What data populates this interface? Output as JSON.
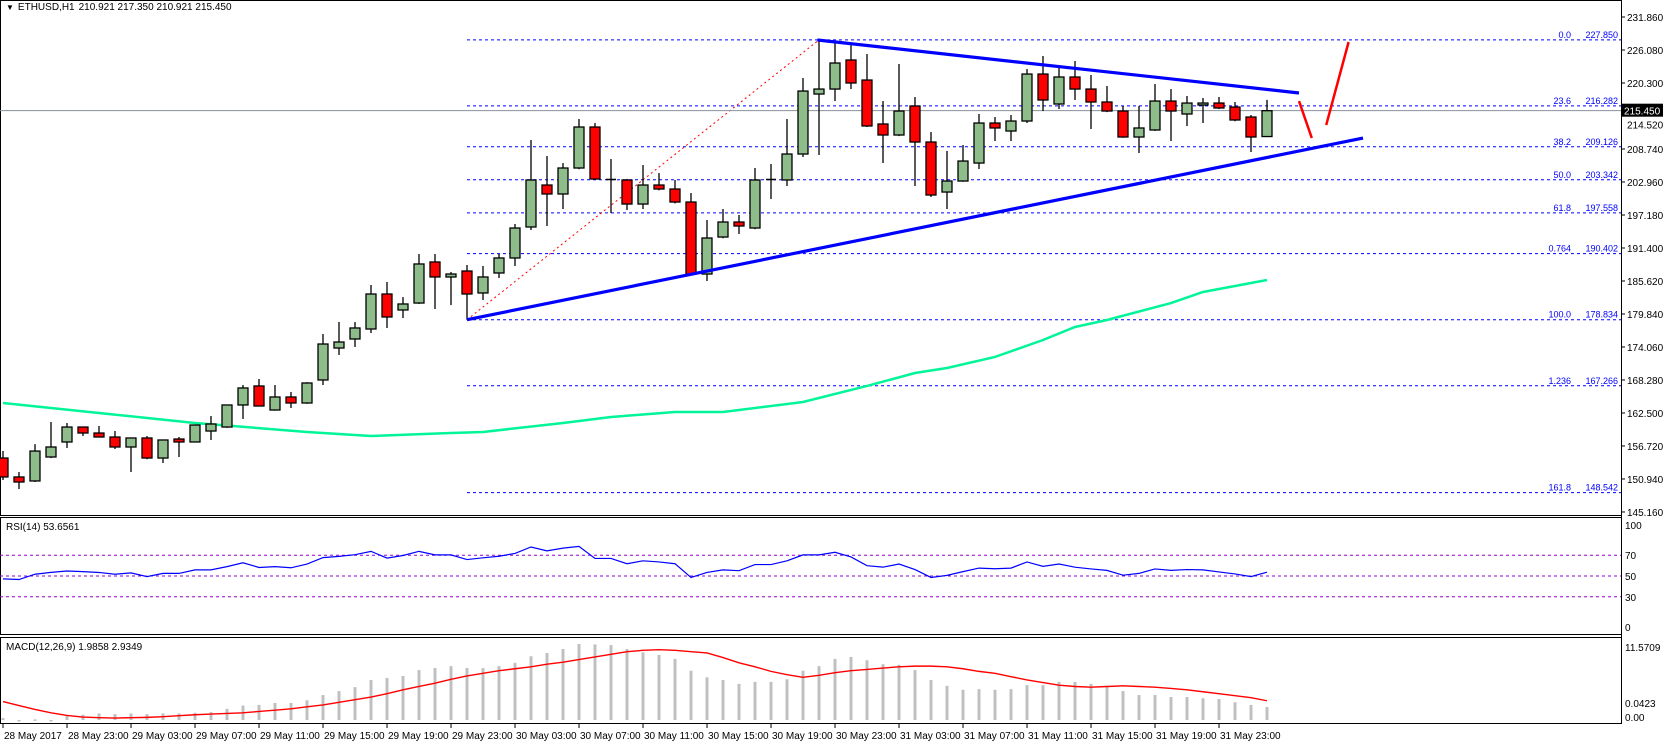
{
  "header": {
    "symbol": "ETHUSD,H1",
    "ohlc": "210.921 217.350 210.921 215.450",
    "menu_icon": "triangle-down-icon"
  },
  "colors": {
    "bull": "#8fbc8b",
    "bear": "#ff0000",
    "ma": "#00f598",
    "trendline": "#0000ff",
    "fib": "#0000ff",
    "fib_diagonal": "#ff0000",
    "rsi_line": "#0000ff",
    "rsi_levels": "#9400d3",
    "macd_hist": "#c0c0c0",
    "macd_signal": "#ff0000",
    "arrows": "#ff0000"
  },
  "chart_data": {
    "type": "candlestick",
    "title": "ETHUSD,H1",
    "price_range": [
      145.16,
      231.86
    ],
    "price_ticks": [
      "231.860",
      "226.080",
      "220.300",
      "214.520",
      "208.740",
      "202.960",
      "197.180",
      "191.400",
      "185.620",
      "179.840",
      "174.060",
      "168.280",
      "162.500",
      "156.720",
      "150.940",
      "145.160"
    ],
    "current_price": "215.450",
    "time_labels": [
      "28 May 2017",
      "28 May 23:00",
      "29 May 03:00",
      "29 May 07:00",
      "29 May 11:00",
      "29 May 15:00",
      "29 May 19:00",
      "29 May 23:00",
      "30 May 03:00",
      "30 May 07:00",
      "30 May 11:00",
      "30 May 15:00",
      "30 May 19:00",
      "30 May 23:00",
      "31 May 03:00",
      "31 May 07:00",
      "31 May 11:00",
      "31 May 15:00",
      "31 May 19:00",
      "31 May 23:00"
    ],
    "time_label_every_n_candles": 4,
    "candles_ohlc": [
      [
        154.61,
        155.84,
        150.76,
        151.29
      ],
      [
        151.29,
        152.16,
        149.18,
        150.41
      ],
      [
        150.59,
        157.05,
        150.41,
        155.83
      ],
      [
        154.79,
        160.92,
        154.6,
        156.54
      ],
      [
        157.42,
        160.74,
        156.37,
        160.04
      ],
      [
        160.04,
        160.1,
        158.46,
        158.99
      ],
      [
        158.99,
        160.22,
        158.29,
        158.29
      ],
      [
        158.29,
        159.34,
        156.19,
        156.54
      ],
      [
        156.54,
        158.12,
        152.16,
        158.12
      ],
      [
        158.12,
        158.46,
        154.4,
        154.61
      ],
      [
        154.61,
        157.77,
        153.74,
        157.77
      ],
      [
        157.94,
        158.29,
        154.79,
        157.42
      ],
      [
        157.42,
        160.39,
        157.4,
        160.39
      ],
      [
        159.34,
        161.97,
        157.77,
        160.57
      ],
      [
        160.04,
        163.9,
        159.9,
        163.9
      ],
      [
        163.9,
        167.4,
        161.45,
        166.88
      ],
      [
        167.23,
        168.45,
        163.7,
        163.72
      ],
      [
        163.02,
        167.4,
        162.9,
        165.3
      ],
      [
        165.3,
        166.18,
        163.37,
        164.25
      ],
      [
        164.25,
        167.9,
        164.1,
        167.75
      ],
      [
        168.28,
        176.33,
        167.4,
        174.58
      ],
      [
        173.88,
        178.44,
        172.66,
        174.93
      ],
      [
        175.46,
        178.44,
        174.06,
        177.39
      ],
      [
        177.21,
        184.92,
        176.51,
        183.34
      ],
      [
        183.34,
        185.44,
        177.39,
        179.31
      ],
      [
        180.54,
        182.81,
        179.14,
        181.59
      ],
      [
        181.76,
        190.35,
        181.6,
        188.6
      ],
      [
        188.95,
        190.35,
        180.71,
        186.32
      ],
      [
        186.32,
        187.2,
        181.4,
        186.84
      ],
      [
        187.37,
        188.42,
        178.834,
        183.34
      ],
      [
        183.52,
        188.25,
        182.29,
        186.32
      ],
      [
        187.02,
        190.35,
        186.14,
        189.65
      ],
      [
        189.65,
        195.6,
        188.25,
        194.9
      ],
      [
        195.08,
        210.31,
        194.55,
        203.31
      ],
      [
        202.43,
        207.51,
        195.25,
        200.86
      ],
      [
        200.86,
        206.28,
        198.23,
        205.41
      ],
      [
        205.41,
        213.99,
        205.2,
        212.59
      ],
      [
        212.59,
        213.29,
        203.3,
        203.48
      ],
      [
        203.4,
        206.98,
        197.53,
        203.2
      ],
      [
        203.31,
        203.5,
        198.05,
        199.1
      ],
      [
        199.1,
        205.93,
        198.23,
        202.43
      ],
      [
        202.43,
        204.53,
        201.5,
        201.73
      ],
      [
        201.73,
        203.31,
        199.2,
        199.45
      ],
      [
        199.45,
        201.03,
        186.6,
        186.84
      ],
      [
        186.84,
        196.3,
        185.62,
        193.15
      ],
      [
        193.32,
        198.23,
        193.1,
        195.95
      ],
      [
        195.95,
        197.18,
        193.85,
        195.25
      ],
      [
        194.9,
        205.41,
        194.7,
        203.31
      ],
      [
        203.2,
        206.11,
        199.97,
        203.4
      ],
      [
        203.31,
        213.99,
        202.26,
        207.86
      ],
      [
        207.86,
        221.17,
        207.34,
        218.89
      ],
      [
        218.37,
        227.85,
        207.69,
        219.24
      ],
      [
        219.24,
        227.5,
        217.14,
        223.8
      ],
      [
        224.33,
        226.95,
        219.24,
        220.3
      ],
      [
        220.82,
        225.38,
        212.59,
        212.77
      ],
      [
        213.12,
        217.14,
        206.28,
        211.19
      ],
      [
        211.19,
        223.63,
        211.0,
        215.39
      ],
      [
        216.27,
        217.85,
        202.26,
        209.96
      ],
      [
        209.96,
        211.71,
        200.33,
        200.68
      ],
      [
        201.2,
        208.39,
        198.23,
        203.13
      ],
      [
        203.13,
        209.44,
        203.0,
        206.63
      ],
      [
        206.28,
        214.87,
        205.24,
        213.29
      ],
      [
        213.29,
        214.34,
        210.14,
        212.42
      ],
      [
        211.89,
        214.69,
        210.14,
        213.64
      ],
      [
        213.64,
        222.75,
        213.29,
        221.87
      ],
      [
        221.87,
        225.03,
        215.39,
        217.32
      ],
      [
        216.62,
        222.92,
        215.74,
        221.35
      ],
      [
        221.35,
        224.15,
        217.32,
        219.24
      ],
      [
        219.24,
        221.7,
        212.24,
        216.97
      ],
      [
        216.97,
        219.77,
        215.2,
        215.39
      ],
      [
        215.39,
        216.27,
        210.7,
        210.84
      ],
      [
        210.84,
        216.27,
        208.04,
        212.42
      ],
      [
        212.07,
        220.12,
        211.9,
        217.14
      ],
      [
        217.14,
        219.24,
        210.14,
        215.39
      ],
      [
        214.87,
        218.02,
        212.77,
        216.79
      ],
      [
        216.44,
        217.67,
        213.29,
        216.79
      ],
      [
        216.79,
        217.85,
        215.74,
        215.92
      ],
      [
        216.09,
        216.97,
        213.6,
        213.82
      ],
      [
        214.34,
        214.69,
        208.21,
        210.84
      ],
      [
        210.921,
        217.35,
        210.921,
        215.45
      ]
    ],
    "moving_average_points": [
      [
        0,
        164.25
      ],
      [
        6,
        162.5
      ],
      [
        12,
        160.75
      ],
      [
        19,
        159.17
      ],
      [
        23,
        158.46
      ],
      [
        28,
        158.99
      ],
      [
        30,
        159.17
      ],
      [
        35,
        160.75
      ],
      [
        38,
        161.8
      ],
      [
        42,
        162.67
      ],
      [
        45,
        162.67
      ],
      [
        50,
        164.42
      ],
      [
        54,
        167.23
      ],
      [
        57,
        169.5
      ],
      [
        59,
        170.38
      ],
      [
        62,
        172.31
      ],
      [
        65,
        175.28
      ],
      [
        67,
        177.56
      ],
      [
        69,
        178.79
      ],
      [
        73,
        181.76
      ],
      [
        75,
        183.69
      ],
      [
        79,
        185.79
      ]
    ],
    "fibonacci": {
      "from_index": 29,
      "to_index": 51,
      "levels": [
        {
          "ratio": "0.0",
          "price": "227.850"
        },
        {
          "ratio": "23.6",
          "price": "216.282"
        },
        {
          "ratio": "38.2",
          "price": "209.126"
        },
        {
          "ratio": "50.0",
          "price": "203.342"
        },
        {
          "ratio": "61.8",
          "price": "197.558"
        },
        {
          "ratio": "0.764",
          "price": "190.402"
        },
        {
          "ratio": "100.0",
          "price": "178.834"
        },
        {
          "ratio": "1.236",
          "price": "167.266"
        },
        {
          "ratio": "161.8",
          "price": "148.542"
        }
      ]
    },
    "trendlines": [
      {
        "name": "resistance",
        "from": [
          50.9,
          227.83
        ],
        "to": [
          81.0,
          218.55
        ]
      },
      {
        "name": "support",
        "from": [
          29.0,
          178.834
        ],
        "to": [
          85.0,
          210.66
        ]
      }
    ],
    "arrows": [
      {
        "from": [
          81.0,
          217.14
        ],
        "to": [
          81.8,
          210.66
        ]
      },
      {
        "from": [
          82.7,
          212.94
        ],
        "to": [
          84.1,
          227.48
        ]
      }
    ],
    "rsi": {
      "label": "RSI(14) 53.6561",
      "axis": [
        "100",
        "70",
        "50",
        "30",
        "0"
      ],
      "levels": [
        70,
        50,
        30
      ],
      "values": [
        47.2,
        46.6,
        51.7,
        53.5,
        54.8,
        54.2,
        53.4,
        51.7,
        53,
        49.4,
        52.5,
        52.5,
        55.9,
        55.9,
        59,
        62.7,
        58.2,
        59,
        57.9,
        61.5,
        67.7,
        68.9,
        70.5,
        73.7,
        67.2,
        69.7,
        73.7,
        70.3,
        70.3,
        65.8,
        67.5,
        69,
        71.7,
        77.9,
        74.2,
        76.8,
        78.5,
        66.9,
        66.9,
        61.8,
        64.6,
        63.5,
        61.8,
        48.6,
        53.4,
        55.9,
        55.1,
        61,
        61,
        64.6,
        70.3,
        70.3,
        72.8,
        68.3,
        59.9,
        58.5,
        61.5,
        56.2,
        48.6,
        50.6,
        54.2,
        57.6,
        57,
        57.6,
        63.5,
        59.3,
        61.5,
        58.5,
        56.8,
        55.4,
        50.8,
        52.5,
        56.8,
        55.4,
        56.2,
        55.9,
        53.9,
        52,
        49.4,
        53.66
      ]
    },
    "macd": {
      "label": "MACD(12,26,9) 1.9858 2.9349",
      "axis_max": "11.5709",
      "axis_min": "0.0423",
      "axis_zero": "0.00",
      "histogram": [
        0.3,
        -0.1,
        0.1,
        -0.05,
        0.6,
        0.8,
        1.0,
        0.9,
        1.0,
        0.9,
        1.0,
        1.0,
        1.1,
        1.2,
        1.7,
        2.2,
        2.3,
        2.6,
        2.6,
        3.0,
        3.8,
        4.4,
        5.0,
        6.1,
        6.4,
        6.7,
        7.6,
        7.9,
        8.2,
        7.9,
        7.9,
        8.2,
        8.7,
        9.7,
        10.2,
        10.8,
        11.57,
        11.5,
        11.4,
        10.8,
        10.3,
        9.9,
        9.3,
        7.5,
        6.5,
        6.1,
        5.5,
        5.8,
        5.8,
        6.2,
        7.5,
        8.2,
        9.3,
        9.6,
        9.1,
        8.5,
        8.4,
        7.6,
        6.1,
        5.2,
        4.6,
        4.7,
        4.6,
        4.7,
        5.3,
        5.3,
        5.8,
        5.8,
        5.5,
        5.2,
        4.4,
        3.8,
        3.8,
        3.5,
        3.5,
        3.3,
        3.2,
        2.7,
        2.3,
        1.99
      ],
      "signal": [
        2.8,
        2.2,
        1.6,
        1.1,
        0.7,
        0.45,
        0.35,
        0.3,
        0.35,
        0.4,
        0.5,
        0.65,
        0.8,
        0.9,
        1.0,
        1.1,
        1.3,
        1.5,
        1.7,
        2.0,
        2.3,
        2.7,
        3.1,
        3.5,
        4.0,
        4.6,
        5.1,
        5.6,
        6.2,
        6.7,
        7.1,
        7.5,
        7.8,
        8.1,
        8.5,
        8.8,
        9.2,
        9.6,
        10.0,
        10.4,
        10.6,
        10.7,
        10.6,
        10.4,
        10.2,
        9.5,
        8.7,
        8.1,
        7.4,
        6.9,
        6.5,
        6.8,
        7.2,
        7.5,
        7.7,
        7.9,
        8.1,
        8.2,
        8.2,
        8.1,
        7.8,
        7.4,
        7.1,
        6.6,
        6.1,
        5.7,
        5.3,
        5.1,
        5.0,
        5.1,
        5.2,
        5.1,
        5.0,
        4.8,
        4.6,
        4.3,
        4.0,
        3.7,
        3.4,
        2.93
      ]
    }
  }
}
